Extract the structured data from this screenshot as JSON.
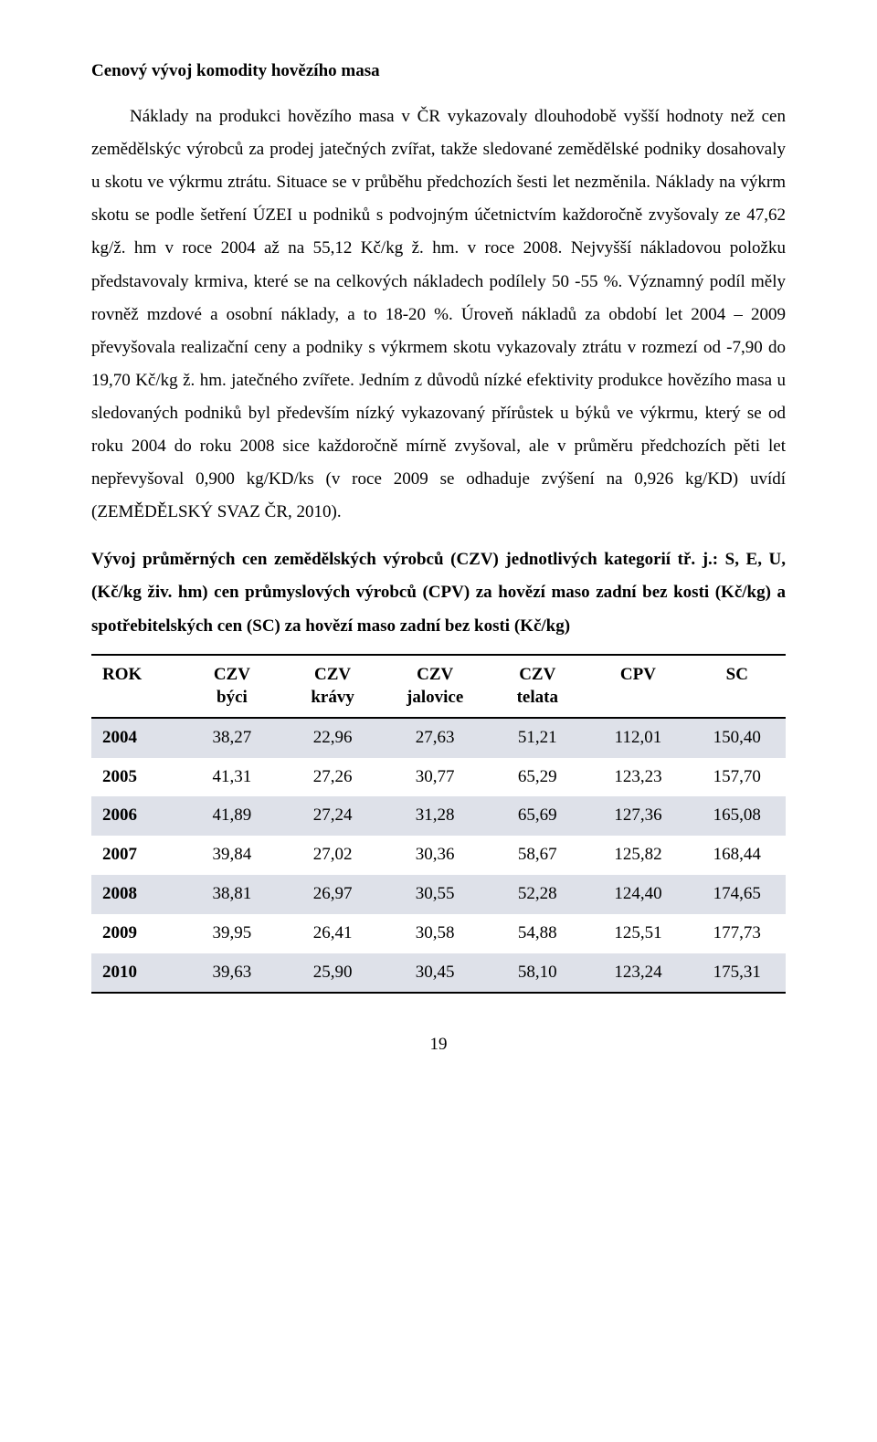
{
  "heading": "Cenový vývoj komodity hovězího masa",
  "body": "Náklady na produkci hovězího masa v ČR vykazovaly dlouhodobě vyšší hodnoty než cen zemědělskýc výrobců za prodej jatečných zvířat, takže sledované zemědělské podniky dosahovaly u skotu ve výkrmu ztrátu. Situace se v průběhu předchozích šesti let nezměnila. Náklady na výkrm skotu se podle šetření ÚZEI u podniků s podvojným účetnictvím každoročně zvyšovaly ze 47,62 kg/ž. hm v roce 2004  až  na  55,12 Kč/kg  ž. hm.  v roce  2008.  Nejvyšší  nákladovou  položku představovaly  krmiva,  které  se  na  celkových  nákladech  podílely  50 -55 %. Významný podíl měly rovněž mzdové a osobní náklady, a to 18-20 %. Úroveň nákladů za období let 2004 – 2009 převyšovala realizační ceny a podniky s výkrmem skotu  vykazovaly  ztrátu  v rozmezí  od  -7,90 do   19,70 Kč/kg  ž. hm.  jatečného zvířete. Jedním z důvodů nízké efektivity produkce hovězího masa u sledovaných podniků byl především nízký vykazovaný přírůstek u býků ve výkrmu, který se od roku 2004 do roku 2008 sice každoročně mírně zvyšoval, ale v průměru předchozích pěti  let  nepřevyšoval  0,900 kg/KD/ks  (v  roce  2009  se  odhaduje  zvýšení  na 0,926 kg/KD) uvídí (ZEMĚDĚLSKÝ SVAZ ČR, 2010).",
  "subheading": "Vývoj průměrných cen zemědělských výrobců (CZV) jednotlivých kategorií tř. j.: S, E, U, (Kč/kg živ. hm) cen průmyslových výrobců (CPV) za hovězí maso zadní bez kosti (Kč/kg) a spotřebitelských cen (SC) za hovězí maso zadní bez kosti (Kč/kg)",
  "table": {
    "columns": [
      {
        "top": "ROK",
        "sub": ""
      },
      {
        "top": "CZV",
        "sub": "býci"
      },
      {
        "top": "CZV",
        "sub": "krávy"
      },
      {
        "top": "CZV",
        "sub": "jalovice"
      },
      {
        "top": "CZV",
        "sub": "telata"
      },
      {
        "top": "CPV",
        "sub": ""
      },
      {
        "top": "SC",
        "sub": ""
      }
    ],
    "rows": [
      [
        "2004",
        "38,27",
        "22,96",
        "27,63",
        "51,21",
        "112,01",
        "150,40"
      ],
      [
        "2005",
        "41,31",
        "27,26",
        "30,77",
        "65,29",
        "123,23",
        "157,70"
      ],
      [
        "2006",
        "41,89",
        "27,24",
        "31,28",
        "65,69",
        "127,36",
        "165,08"
      ],
      [
        "2007",
        "39,84",
        "27,02",
        "30,36",
        "58,67",
        "125,82",
        "168,44"
      ],
      [
        "2008",
        "38,81",
        "26,97",
        "30,55",
        "52,28",
        "124,40",
        "174,65"
      ],
      [
        "2009",
        "39,95",
        "26,41",
        "30,58",
        "54,88",
        "125,51",
        "177,73"
      ],
      [
        "2010",
        "39,63",
        "25,90",
        "30,45",
        "58,10",
        "123,24",
        "175,31"
      ]
    ],
    "alt_row_bg": "#dee1e9",
    "column_widths_pct": [
      13,
      14.5,
      14.5,
      15,
      14.5,
      14.5,
      14
    ]
  },
  "page_number": "19"
}
